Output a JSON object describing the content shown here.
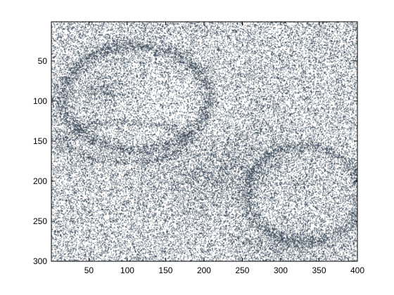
{
  "chart_data": {
    "type": "heatmap",
    "title": "",
    "xlabel": "",
    "ylabel": "",
    "xlim": [
      1,
      400
    ],
    "ylim": [
      300,
      1
    ],
    "y_axis_direction": "reversed",
    "grid": false,
    "legend": "none",
    "colormap": [
      "#ffffff",
      "#2b3a4a"
    ],
    "x_ticks": [
      50,
      100,
      150,
      200,
      250,
      300,
      350,
      400
    ],
    "y_ticks": [
      50,
      100,
      150,
      200,
      250,
      300
    ],
    "x_tick_labels": [
      "50",
      "100",
      "150",
      "200",
      "250",
      "300",
      "350",
      "400"
    ],
    "y_tick_labels": [
      "50",
      "100",
      "150",
      "200",
      "250",
      "300"
    ],
    "image_size": [
      400,
      300
    ],
    "content": "noisy binary image (dark speckle on white) showing faint dark banded shapes"
  }
}
